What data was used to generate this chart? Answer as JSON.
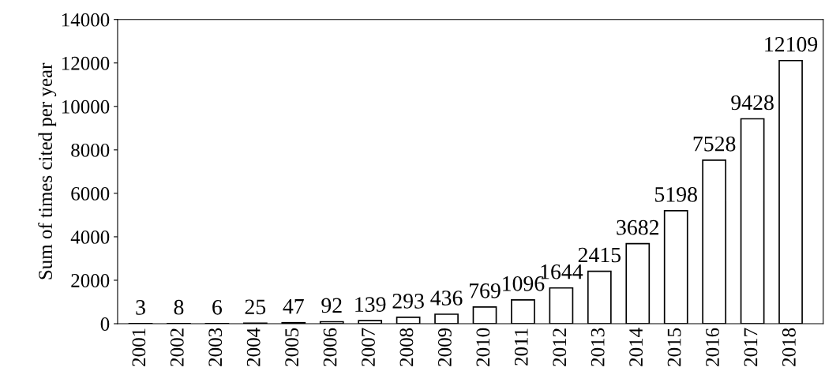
{
  "chart_data": {
    "type": "bar",
    "ylabel": "Sum of times cited per year",
    "categories": [
      "2001",
      "2002",
      "2003",
      "2004",
      "2005",
      "2006",
      "2007",
      "2008",
      "2009",
      "2010",
      "2011",
      "2012",
      "2013",
      "2014",
      "2015",
      "2016",
      "2017",
      "2018"
    ],
    "values": [
      3,
      8,
      6,
      25,
      47,
      92,
      139,
      293,
      436,
      769,
      1096,
      1644,
      2415,
      3682,
      5198,
      7528,
      9428,
      12109
    ],
    "color": "#ffffff",
    "ylim": [
      0,
      14000
    ],
    "yticks": [
      0,
      2000,
      4000,
      6000,
      8000,
      10000,
      12000,
      14000
    ],
    "grid": false,
    "data_labels": true
  }
}
